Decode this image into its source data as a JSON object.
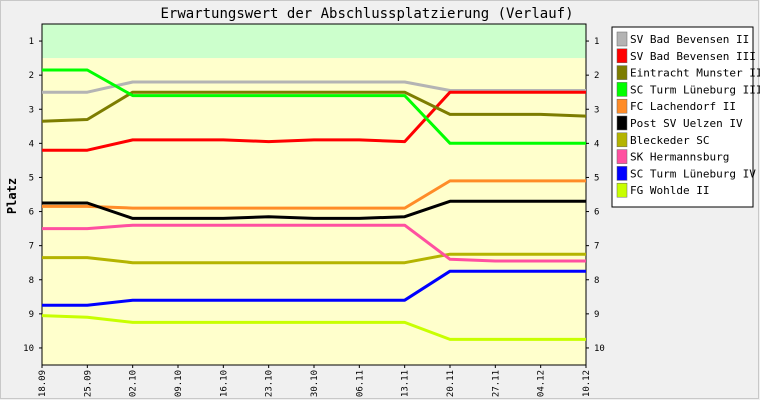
{
  "chart_data": {
    "type": "line",
    "title": "Erwartungswert der Abschlussplatzierung (Verlauf)",
    "ylabel": "Platz",
    "xlabel": "",
    "x": [
      "18.09",
      "25.09",
      "02.10",
      "09.10",
      "16.10",
      "23.10",
      "30.10",
      "06.11",
      "13.11",
      "20.11",
      "27.11",
      "04.12",
      "10.12"
    ],
    "yticks": [
      1,
      2,
      3,
      4,
      5,
      6,
      7,
      8,
      9,
      10
    ],
    "ylim": [
      10.5,
      0.5
    ],
    "y_inverted": true,
    "grid": false,
    "legend_position": "right",
    "bands": [
      {
        "from": 0.5,
        "to": 1.5,
        "color": "#ccffcc"
      },
      {
        "from": 1.5,
        "to": 10.5,
        "color": "#ffffcc"
      }
    ],
    "series": [
      {
        "name": "SV Bad Bevensen II",
        "color": "#b4b4b4",
        "values": [
          2.5,
          2.5,
          2.2,
          2.2,
          2.2,
          2.2,
          2.2,
          2.2,
          2.2,
          2.45,
          2.45,
          2.45,
          2.45
        ]
      },
      {
        "name": "SV Bad Bevensen III",
        "color": "#ff0000",
        "values": [
          4.2,
          4.2,
          3.9,
          3.9,
          3.9,
          3.95,
          3.9,
          3.9,
          3.95,
          2.5,
          2.5,
          2.5,
          2.5
        ]
      },
      {
        "name": "Eintracht Munster II",
        "color": "#7d7d00",
        "values": [
          3.35,
          3.3,
          2.5,
          2.5,
          2.5,
          2.5,
          2.5,
          2.5,
          2.5,
          3.15,
          3.15,
          3.15,
          3.2
        ]
      },
      {
        "name": "SC Turm Lüneburg III",
        "color": "#00ff00",
        "values": [
          1.85,
          1.85,
          2.6,
          2.6,
          2.6,
          2.6,
          2.6,
          2.6,
          2.6,
          4.0,
          4.0,
          4.0,
          4.0
        ]
      },
      {
        "name": "FC Lachendorf II",
        "color": "#ff8c28",
        "values": [
          5.85,
          5.85,
          5.9,
          5.9,
          5.9,
          5.9,
          5.9,
          5.9,
          5.9,
          5.1,
          5.1,
          5.1,
          5.1
        ]
      },
      {
        "name": "Post SV Uelzen IV",
        "color": "#000000",
        "values": [
          5.75,
          5.75,
          6.2,
          6.2,
          6.2,
          6.15,
          6.2,
          6.2,
          6.15,
          5.7,
          5.7,
          5.7,
          5.7
        ]
      },
      {
        "name": "Bleckeder SC",
        "color": "#b4b400",
        "values": [
          7.35,
          7.35,
          7.5,
          7.5,
          7.5,
          7.5,
          7.5,
          7.5,
          7.5,
          7.25,
          7.25,
          7.25,
          7.25
        ]
      },
      {
        "name": "SK Hermannsburg",
        "color": "#ff50a0",
        "values": [
          6.5,
          6.5,
          6.4,
          6.4,
          6.4,
          6.4,
          6.4,
          6.4,
          6.4,
          7.4,
          7.45,
          7.45,
          7.45
        ]
      },
      {
        "name": "SC Turm Lüneburg IV",
        "color": "#0000ff",
        "values": [
          8.75,
          8.75,
          8.6,
          8.6,
          8.6,
          8.6,
          8.6,
          8.6,
          8.6,
          7.75,
          7.75,
          7.75,
          7.75
        ]
      },
      {
        "name": "FG Wohlde II",
        "color": "#c8ff00",
        "values": [
          9.05,
          9.1,
          9.25,
          9.25,
          9.25,
          9.25,
          9.25,
          9.25,
          9.25,
          9.75,
          9.75,
          9.75,
          9.75
        ]
      }
    ]
  }
}
